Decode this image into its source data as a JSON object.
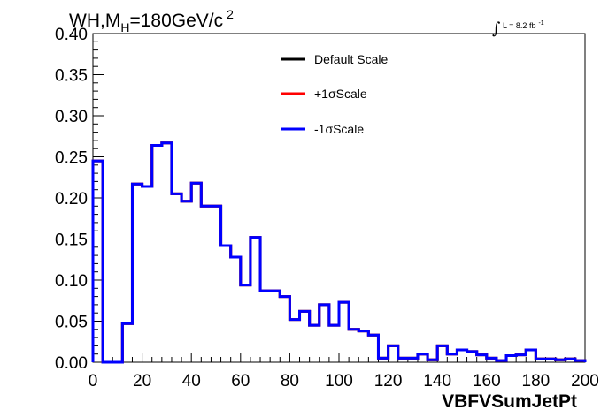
{
  "title": {
    "prefix": "WH,M",
    "subscript": "H",
    "suffix": "=180GeV/c",
    "superscript": "2"
  },
  "lumi": {
    "integral_symbol": "∫",
    "text": "L = 8.2 fb",
    "exponent": "-1"
  },
  "colors": {
    "default": "#000000",
    "plus": "#ff0000",
    "minus": "#0000ff"
  },
  "chart_data": {
    "type": "line",
    "style": "step-histogram",
    "xlabel": "VBFVSumJetPt",
    "ylabel": "",
    "xlim": [
      0,
      200
    ],
    "ylim": [
      0,
      0.4
    ],
    "x_ticks": [
      "0",
      "20",
      "40",
      "60",
      "80",
      "100",
      "120",
      "140",
      "160",
      "180",
      "200"
    ],
    "y_ticks": [
      "0.00",
      "0.05",
      "0.10",
      "0.15",
      "0.20",
      "0.25",
      "0.30",
      "0.35",
      "0.40"
    ],
    "bin_width": 4,
    "bin_edges_start": 0,
    "legend": {
      "placement": "top-center",
      "entries": [
        "Default Scale",
        "+1σScale",
        "-1σScale"
      ]
    },
    "series": [
      {
        "name": "Default Scale",
        "color": "#000000",
        "values": [
          0.245,
          0.0,
          0.0,
          0.047,
          0.217,
          0.214,
          0.264,
          0.267,
          0.205,
          0.196,
          0.218,
          0.19,
          0.19,
          0.142,
          0.128,
          0.094,
          0.152,
          0.087,
          0.087,
          0.08,
          0.052,
          0.062,
          0.045,
          0.07,
          0.045,
          0.073,
          0.04,
          0.038,
          0.033,
          0.005,
          0.02,
          0.005,
          0.005,
          0.01,
          0.003,
          0.02,
          0.01,
          0.015,
          0.013,
          0.009,
          0.005,
          0.002,
          0.008,
          0.009,
          0.015,
          0.004,
          0.004,
          0.003,
          0.004,
          0.002
        ]
      },
      {
        "name": "+1σScale",
        "color": "#ff0000",
        "values": [
          0.245,
          0.0,
          0.0,
          0.047,
          0.217,
          0.214,
          0.264,
          0.267,
          0.205,
          0.196,
          0.218,
          0.19,
          0.19,
          0.142,
          0.128,
          0.094,
          0.152,
          0.087,
          0.087,
          0.08,
          0.052,
          0.062,
          0.045,
          0.07,
          0.045,
          0.073,
          0.04,
          0.038,
          0.033,
          0.005,
          0.02,
          0.005,
          0.005,
          0.01,
          0.003,
          0.02,
          0.01,
          0.015,
          0.013,
          0.009,
          0.005,
          0.002,
          0.008,
          0.009,
          0.015,
          0.004,
          0.004,
          0.003,
          0.004,
          0.002
        ]
      },
      {
        "name": "-1σScale",
        "color": "#0000ff",
        "values": [
          0.245,
          0.0,
          0.0,
          0.047,
          0.217,
          0.214,
          0.264,
          0.267,
          0.205,
          0.196,
          0.218,
          0.19,
          0.19,
          0.142,
          0.128,
          0.094,
          0.152,
          0.087,
          0.087,
          0.08,
          0.052,
          0.062,
          0.045,
          0.07,
          0.045,
          0.073,
          0.04,
          0.038,
          0.033,
          0.005,
          0.02,
          0.005,
          0.005,
          0.01,
          0.003,
          0.02,
          0.01,
          0.015,
          0.013,
          0.009,
          0.005,
          0.002,
          0.008,
          0.009,
          0.015,
          0.004,
          0.004,
          0.003,
          0.004,
          0.002
        ]
      }
    ]
  }
}
